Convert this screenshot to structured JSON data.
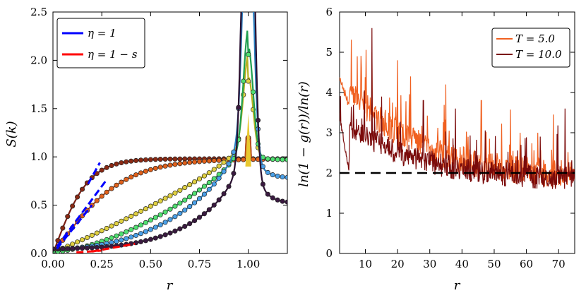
{
  "chart_data": [
    {
      "type": "line",
      "panel": "left",
      "xlabel": "r",
      "ylabel": "S(k)",
      "xlim": [
        0,
        1.2
      ],
      "ylim": [
        0,
        2.5
      ],
      "xticks": [
        "0.00",
        "0.25",
        "0.50",
        "0.75",
        "1.00"
      ],
      "yticks": [
        "0.0",
        "0.5",
        "1.0",
        "1.5",
        "2.0",
        "2.5"
      ],
      "legend": {
        "position": "top-left",
        "entries": [
          {
            "label": "η = 1",
            "color": "#0000ff"
          },
          {
            "label": "η = 1 − s",
            "color": "#ff0000"
          }
        ]
      },
      "series": [
        {
          "name": "s1",
          "color": "#7a1f14",
          "marker": "#8b2a14",
          "kind": "sat",
          "s0": 5.5,
          "p": 1.0,
          "plateau": 0.98
        },
        {
          "name": "s2",
          "color": "#b84a1a",
          "marker": "#e0601a",
          "kind": "sat",
          "s0": 2.8,
          "p": 1.0,
          "plateau": 0.98
        },
        {
          "name": "s3",
          "color": "#b8b020",
          "marker": "#e0d040",
          "kind": "pow",
          "s0": 0.98,
          "p": 1.1,
          "peak": 1.0
        },
        {
          "name": "s4",
          "color": "#20a050",
          "marker": "#50e070",
          "kind": "pow",
          "s0": 0.95,
          "p": 1.6,
          "peak": 1.3
        },
        {
          "name": "s5",
          "color": "#2a7fc0",
          "marker": "#4aa0e8",
          "kind": "pow",
          "s0": 0.8,
          "p": 2.3,
          "peak": 3.0
        },
        {
          "name": "s6",
          "color": "#2a1030",
          "marker": "#3a1a40",
          "kind": "pow",
          "s0": 0.55,
          "p": 3.2,
          "peak": 5.0
        }
      ],
      "fits": [
        {
          "name": "eta-1-a",
          "color": "#0000ff",
          "x": [
            0.18,
            0.24
          ],
          "y": [
            0.72,
            0.94
          ]
        },
        {
          "name": "eta-1-b",
          "color": "#0000ff",
          "x": [
            0.02,
            0.27
          ],
          "y": [
            0.07,
            0.75
          ]
        },
        {
          "name": "eta-1-c",
          "color": "#0000ff",
          "x": [
            0.02,
            0.2
          ],
          "y": [
            0.05,
            0.5
          ]
        },
        {
          "name": "eta-1-s-a",
          "color": "#ff0000",
          "x": [
            0.2,
            0.42
          ],
          "y": [
            0.02,
            0.1
          ]
        },
        {
          "name": "eta-1-s-b",
          "color": "#ff0000",
          "x": [
            0.12,
            0.25
          ],
          "y": [
            0.01,
            0.03
          ]
        }
      ]
    },
    {
      "type": "line",
      "panel": "right",
      "xlabel": "r",
      "ylabel": "ln(1 − g(r))/ln(r)",
      "xlim": [
        2,
        75
      ],
      "ylim": [
        0,
        6
      ],
      "xticks": [
        "10",
        "20",
        "30",
        "40",
        "50",
        "60",
        "70"
      ],
      "yticks": [
        "0",
        "1",
        "2",
        "3",
        "4",
        "5",
        "6"
      ],
      "reference_line": {
        "y": 2,
        "style": "dashed",
        "color": "#000000"
      },
      "legend": {
        "position": "top-right",
        "entries": [
          {
            "label": "T = 5.0",
            "color": "#f06020"
          },
          {
            "label": "T = 10.0",
            "color": "#7a0a0a"
          }
        ]
      },
      "series": [
        {
          "name": "T = 5.0",
          "color": "#f06020",
          "start": 4.4,
          "end": 1.85,
          "noise": 0.35,
          "spikes": [
            [
              7.5,
              4.9
            ],
            [
              12,
              5.0
            ],
            [
              20,
              4.8
            ],
            [
              24,
              4.4
            ],
            [
              35,
              4.2
            ],
            [
              46,
              3.8
            ]
          ]
        },
        {
          "name": "T = 10.0",
          "color": "#7a0a0a",
          "start": 3.4,
          "end": 1.8,
          "noise": 0.3,
          "spikes": [
            [
              12,
              5.6
            ],
            [
              15,
              3.9
            ],
            [
              28,
              3.8
            ],
            [
              38,
              3.6
            ],
            [
              72,
              3.6
            ]
          ]
        }
      ]
    }
  ]
}
